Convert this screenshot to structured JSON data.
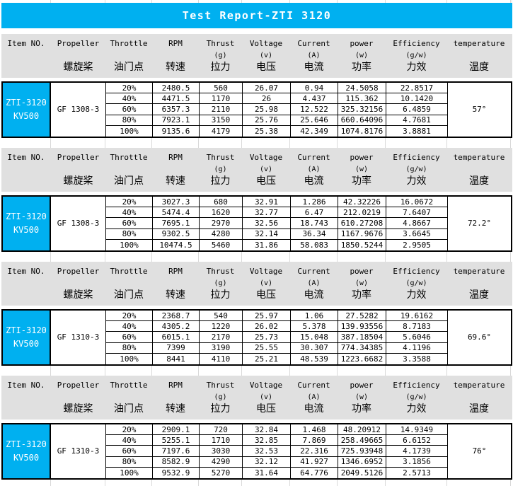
{
  "title": "Test Report-ZTI 3120",
  "colors": {
    "accent_cyan": "#00b0f0",
    "header_gray": "#e0e0e0",
    "gridline_gray": "#d9d9d9",
    "border_black": "#000000"
  },
  "columns": [
    {
      "en": "Item NO.",
      "unit": "",
      "zh": ""
    },
    {
      "en": "Propeller",
      "unit": "",
      "zh": "螺旋桨"
    },
    {
      "en": "Throttle",
      "unit": "",
      "zh": "油门点"
    },
    {
      "en": "RPM",
      "unit": "",
      "zh": "转速"
    },
    {
      "en": "Thrust",
      "unit": "(g)",
      "zh": "拉力"
    },
    {
      "en": "Voltage",
      "unit": "(v)",
      "zh": "电压"
    },
    {
      "en": "Current",
      "unit": "(A)",
      "zh": "电流"
    },
    {
      "en": "power",
      "unit": "(w)",
      "zh": "功率"
    },
    {
      "en": "Efficiency",
      "unit": "(g/w)",
      "zh": "力效"
    },
    {
      "en": "temperature",
      "unit": "",
      "zh": "温度"
    }
  ],
  "sections": [
    {
      "item_line1": "ZTI-3120",
      "item_line2": "KV500",
      "propeller": "GF 1308-3",
      "temperature": "57°",
      "rows": [
        {
          "throttle": "20%",
          "rpm": "2480.5",
          "thrust": "560",
          "voltage": "26.07",
          "current": "0.94",
          "power": "24.5058",
          "efficiency": "22.8517"
        },
        {
          "throttle": "40%",
          "rpm": "4471.5",
          "thrust": "1170",
          "voltage": "26",
          "current": "4.437",
          "power": "115.362",
          "efficiency": "10.1420"
        },
        {
          "throttle": "60%",
          "rpm": "6357.3",
          "thrust": "2110",
          "voltage": "25.98",
          "current": "12.522",
          "power": "325.32156",
          "efficiency": "6.4859"
        },
        {
          "throttle": "80%",
          "rpm": "7923.1",
          "thrust": "3150",
          "voltage": "25.76",
          "current": "25.646",
          "power": "660.64096",
          "efficiency": "4.7681"
        },
        {
          "throttle": "100%",
          "rpm": "9135.6",
          "thrust": "4179",
          "voltage": "25.38",
          "current": "42.349",
          "power": "1074.8176",
          "efficiency": "3.8881"
        }
      ]
    },
    {
      "item_line1": "ZTI-3120",
      "item_line2": "KV500",
      "propeller": "GF 1308-3",
      "temperature": "72.2°",
      "rows": [
        {
          "throttle": "20%",
          "rpm": "3027.3",
          "thrust": "680",
          "voltage": "32.91",
          "current": "1.286",
          "power": "42.32226",
          "efficiency": "16.0672"
        },
        {
          "throttle": "40%",
          "rpm": "5474.4",
          "thrust": "1620",
          "voltage": "32.77",
          "current": "6.47",
          "power": "212.0219",
          "efficiency": "7.6407"
        },
        {
          "throttle": "60%",
          "rpm": "7695.1",
          "thrust": "2970",
          "voltage": "32.56",
          "current": "18.743",
          "power": "610.27208",
          "efficiency": "4.8667"
        },
        {
          "throttle": "80%",
          "rpm": "9302.5",
          "thrust": "4280",
          "voltage": "32.14",
          "current": "36.34",
          "power": "1167.9676",
          "efficiency": "3.6645"
        },
        {
          "throttle": "100%",
          "rpm": "10474.5",
          "thrust": "5460",
          "voltage": "31.86",
          "current": "58.083",
          "power": "1850.5244",
          "efficiency": "2.9505"
        }
      ]
    },
    {
      "item_line1": "ZTI-3120",
      "item_line2": "KV500",
      "propeller": "GF 1310-3",
      "temperature": "69.6°",
      "rows": [
        {
          "throttle": "20%",
          "rpm": "2368.7",
          "thrust": "540",
          "voltage": "25.97",
          "current": "1.06",
          "power": "27.5282",
          "efficiency": "19.6162"
        },
        {
          "throttle": "40%",
          "rpm": "4305.2",
          "thrust": "1220",
          "voltage": "26.02",
          "current": "5.378",
          "power": "139.93556",
          "efficiency": "8.7183"
        },
        {
          "throttle": "60%",
          "rpm": "6015.1",
          "thrust": "2170",
          "voltage": "25.73",
          "current": "15.048",
          "power": "387.18504",
          "efficiency": "5.6046"
        },
        {
          "throttle": "80%",
          "rpm": "7399",
          "thrust": "3190",
          "voltage": "25.55",
          "current": "30.307",
          "power": "774.34385",
          "efficiency": "4.1196"
        },
        {
          "throttle": "100%",
          "rpm": "8441",
          "thrust": "4110",
          "voltage": "25.21",
          "current": "48.539",
          "power": "1223.6682",
          "efficiency": "3.3588"
        }
      ]
    },
    {
      "item_line1": "ZTI-3120",
      "item_line2": "KV500",
      "propeller": "GF 1310-3",
      "temperature": "76°",
      "rows": [
        {
          "throttle": "20%",
          "rpm": "2909.1",
          "thrust": "720",
          "voltage": "32.84",
          "current": "1.468",
          "power": "48.20912",
          "efficiency": "14.9349"
        },
        {
          "throttle": "40%",
          "rpm": "5255.1",
          "thrust": "1710",
          "voltage": "32.85",
          "current": "7.869",
          "power": "258.49665",
          "efficiency": "6.6152"
        },
        {
          "throttle": "60%",
          "rpm": "7197.6",
          "thrust": "3030",
          "voltage": "32.53",
          "current": "22.316",
          "power": "725.93948",
          "efficiency": "4.1739"
        },
        {
          "throttle": "80%",
          "rpm": "8582.9",
          "thrust": "4290",
          "voltage": "32.12",
          "current": "41.927",
          "power": "1346.6952",
          "efficiency": "3.1856"
        },
        {
          "throttle": "100%",
          "rpm": "9532.9",
          "thrust": "5270",
          "voltage": "31.64",
          "current": "64.776",
          "power": "2049.5126",
          "efficiency": "2.5713"
        }
      ]
    }
  ]
}
